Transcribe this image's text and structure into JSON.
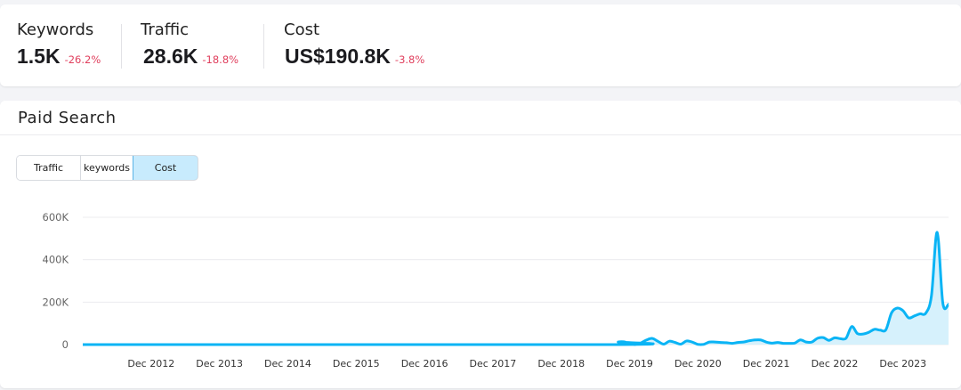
{
  "stats": [
    {
      "label": "Keywords",
      "value": "1.5K",
      "change": "-26.2%"
    },
    {
      "label": "Traffic",
      "value": "28.6K",
      "change": "-18.8%"
    },
    {
      "label": "Cost",
      "value": "US$190.8K",
      "change": "-3.8%"
    }
  ],
  "paid_search": {
    "title": "Paid Search",
    "tabs": [
      {
        "label": "Traffic",
        "active": false
      },
      {
        "label": "keywords",
        "active": false
      },
      {
        "label": "Cost",
        "active": true
      }
    ]
  },
  "colors": {
    "line": "#0ab4f5",
    "fill": "#cfeefc",
    "negative": "#e0405e",
    "active_tab": "#c8ebfd"
  },
  "chart_data": {
    "type": "area",
    "x_range": [
      "2011-12",
      "2024-08"
    ],
    "ylim": [
      0,
      600000
    ],
    "y_ticks": [
      {
        "v": 0,
        "label": "0"
      },
      {
        "v": 200000,
        "label": "200K"
      },
      {
        "v": 400000,
        "label": "400K"
      },
      {
        "v": 600000,
        "label": "600K"
      }
    ],
    "x_ticks": [
      {
        "date": "2012-12",
        "label": "Dec 2012"
      },
      {
        "date": "2013-12",
        "label": "Dec 2013"
      },
      {
        "date": "2014-12",
        "label": "Dec 2014"
      },
      {
        "date": "2015-12",
        "label": "Dec 2015"
      },
      {
        "date": "2016-12",
        "label": "Dec 2016"
      },
      {
        "date": "2017-12",
        "label": "Dec 2017"
      },
      {
        "date": "2018-12",
        "label": "Dec 2018"
      },
      {
        "date": "2019-12",
        "label": "Dec 2019"
      },
      {
        "date": "2020-12",
        "label": "Dec 2020"
      },
      {
        "date": "2021-12",
        "label": "Dec 2021"
      },
      {
        "date": "2022-12",
        "label": "Dec 2022"
      },
      {
        "date": "2023-12",
        "label": "Dec 2023"
      }
    ],
    "grid": true,
    "points": [
      [
        "2011-12",
        0
      ],
      [
        "2019-09",
        0
      ],
      [
        "2019-10",
        12000
      ],
      [
        "2019-11",
        13000
      ],
      [
        "2019-12",
        5000
      ],
      [
        "2020-01",
        0
      ],
      [
        "2020-02",
        8000
      ],
      [
        "2020-03",
        22000
      ],
      [
        "2020-04",
        29000
      ],
      [
        "2020-05",
        15000
      ],
      [
        "2020-06",
        2000
      ],
      [
        "2020-07",
        16000
      ],
      [
        "2020-08",
        10000
      ],
      [
        "2020-09",
        2000
      ],
      [
        "2020-10",
        17000
      ],
      [
        "2020-11",
        12000
      ],
      [
        "2020-12",
        1000
      ],
      [
        "2021-01",
        1000
      ],
      [
        "2021-02",
        12000
      ],
      [
        "2021-03",
        12000
      ],
      [
        "2021-04",
        10000
      ],
      [
        "2021-05",
        9000
      ],
      [
        "2021-06",
        6000
      ],
      [
        "2021-07",
        10000
      ],
      [
        "2021-08",
        12000
      ],
      [
        "2021-09",
        18000
      ],
      [
        "2021-10",
        22000
      ],
      [
        "2021-11",
        22000
      ],
      [
        "2021-12",
        12000
      ],
      [
        "2022-01",
        7000
      ],
      [
        "2022-02",
        10000
      ],
      [
        "2022-03",
        6000
      ],
      [
        "2022-04",
        6000
      ],
      [
        "2022-05",
        7000
      ],
      [
        "2022-06",
        22000
      ],
      [
        "2022-07",
        12000
      ],
      [
        "2022-08",
        12000
      ],
      [
        "2022-09",
        30000
      ],
      [
        "2022-10",
        33000
      ],
      [
        "2022-11",
        20000
      ],
      [
        "2022-12",
        32000
      ],
      [
        "2023-01",
        28000
      ],
      [
        "2023-02",
        30000
      ],
      [
        "2023-03",
        85000
      ],
      [
        "2023-04",
        52000
      ],
      [
        "2023-05",
        50000
      ],
      [
        "2023-06",
        58000
      ],
      [
        "2023-07",
        72000
      ],
      [
        "2023-08",
        68000
      ],
      [
        "2023-09",
        70000
      ],
      [
        "2023-10",
        150000
      ],
      [
        "2023-11",
        172000
      ],
      [
        "2023-12",
        160000
      ],
      [
        "2024-01",
        126000
      ],
      [
        "2024-02",
        135000
      ],
      [
        "2024-03",
        145000
      ],
      [
        "2024-04",
        148000
      ],
      [
        "2024-05",
        230000
      ],
      [
        "2024-06",
        529000
      ],
      [
        "2024-07",
        195000
      ],
      [
        "2024-08",
        190000
      ]
    ]
  }
}
